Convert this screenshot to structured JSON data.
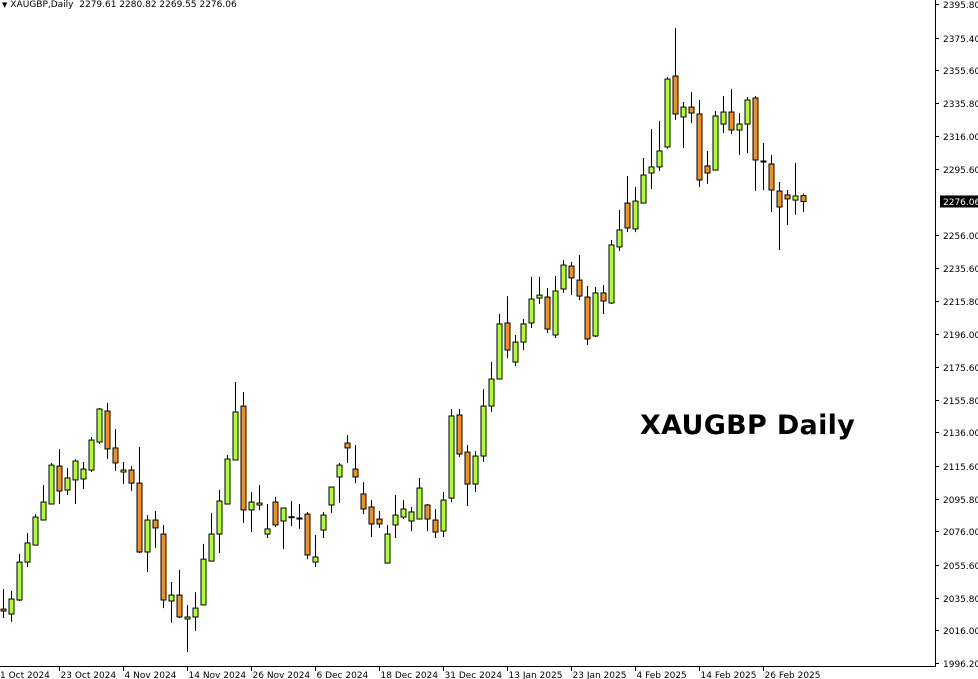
{
  "header": {
    "symbol": "XAUGBP,Daily",
    "ohlc": "2279.61 2280.82 2269.55 2276.06"
  },
  "overlay_title": "XAUGBP Daily",
  "colors": {
    "bull": "#adff2f",
    "bear": "#f0901e",
    "outline": "#000000",
    "price_label_bg": "#000000"
  },
  "chart_data": {
    "type": "candlestick",
    "timeframe": "Daily",
    "symbol": "XAUGBP",
    "ylim": [
      1996.2,
      2395.8
    ],
    "y_ticks": [
      "2395.80",
      "2375.40",
      "2355.60",
      "2335.80",
      "2316.00",
      "2295.60",
      "2256.00",
      "2235.60",
      "2215.80",
      "2196.00",
      "2175.60",
      "2155.80",
      "2136.00",
      "2115.60",
      "2095.80",
      "2076.00",
      "2055.60",
      "2035.80",
      "2016.00",
      "1996.20"
    ],
    "current_price": "2276.06",
    "x_ticks": [
      {
        "label": "1 Oct 2024",
        "bar": -1
      },
      {
        "label": "23 Oct 2024",
        "bar": 7
      },
      {
        "label": "4 Nov 2024",
        "bar": 15
      },
      {
        "label": "14 Nov 2024",
        "bar": 23
      },
      {
        "label": "26 Nov 2024",
        "bar": 31
      },
      {
        "label": "6 Dec 2024",
        "bar": 39
      },
      {
        "label": "18 Dec 2024",
        "bar": 47
      },
      {
        "label": "31 Dec 2024",
        "bar": 55
      },
      {
        "label": "13 Jan 2025",
        "bar": 63
      },
      {
        "label": "23 Jan 2025",
        "bar": 71
      },
      {
        "label": "4 Feb 2025",
        "bar": 79
      },
      {
        "label": "14 Feb 2025",
        "bar": 87
      },
      {
        "label": "26 Feb 2025",
        "bar": 95
      }
    ],
    "ohlc": [
      [
        2028.9,
        2041.1,
        2023.5,
        2027.7
      ],
      [
        2025.9,
        2039.9,
        2021.1,
        2035.0
      ],
      [
        2034.4,
        2062.3,
        2033.8,
        2057.4
      ],
      [
        2057.4,
        2075.0,
        2054.4,
        2069.0
      ],
      [
        2067.7,
        2086.5,
        2067.7,
        2084.7
      ],
      [
        2082.9,
        2104.1,
        2082.9,
        2093.8
      ],
      [
        2092.6,
        2117.5,
        2092.6,
        2116.2
      ],
      [
        2115.6,
        2126.0,
        2092.6,
        2100.5
      ],
      [
        2101.1,
        2114.4,
        2098.1,
        2108.4
      ],
      [
        2107.2,
        2119.9,
        2092.6,
        2118.7
      ],
      [
        2107.8,
        2118.1,
        2101.7,
        2113.8
      ],
      [
        2113.2,
        2133.2,
        2112.0,
        2131.4
      ],
      [
        2130.2,
        2150.8,
        2129.0,
        2150.2
      ],
      [
        2149.0,
        2153.9,
        2119.9,
        2126.0
      ],
      [
        2126.6,
        2138.1,
        2112.6,
        2117.5
      ],
      [
        2112.0,
        2118.1,
        2104.7,
        2113.2
      ],
      [
        2113.2,
        2115.6,
        2100.5,
        2105.3
      ],
      [
        2105.3,
        2127.2,
        2062.9,
        2063.5
      ],
      [
        2063.5,
        2085.9,
        2051.4,
        2082.9
      ],
      [
        2082.9,
        2088.4,
        2065.9,
        2078.1
      ],
      [
        2074.4,
        2079.9,
        2029.5,
        2034.4
      ],
      [
        2033.8,
        2045.3,
        2020.5,
        2037.4
      ],
      [
        2037.4,
        2052.6,
        2023.5,
        2024.1
      ],
      [
        2022.9,
        2031.4,
        2002.9,
        2024.1
      ],
      [
        2024.1,
        2039.2,
        2015.6,
        2029.5
      ],
      [
        2031.4,
        2068.4,
        2031.4,
        2059.2
      ],
      [
        2058.0,
        2087.2,
        2058.0,
        2074.4
      ],
      [
        2074.4,
        2101.1,
        2062.9,
        2094.4
      ],
      [
        2092.6,
        2122.3,
        2092.6,
        2119.9
      ],
      [
        2119.3,
        2166.6,
        2119.3,
        2148.4
      ],
      [
        2152.0,
        2160.5,
        2081.1,
        2089.0
      ],
      [
        2089.0,
        2099.9,
        2075.6,
        2093.8
      ],
      [
        2092.0,
        2104.1,
        2089.0,
        2093.2
      ],
      [
        2074.4,
        2092.6,
        2072.0,
        2077.5
      ],
      [
        2093.8,
        2096.9,
        2078.7,
        2079.9
      ],
      [
        2082.3,
        2090.2,
        2065.3,
        2090.2
      ],
      [
        2084.7,
        2094.4,
        2079.3,
        2084.9
      ],
      [
        2084.1,
        2092.6,
        2077.5,
        2083.5
      ],
      [
        2086.5,
        2087.8,
        2059.2,
        2061.7
      ],
      [
        2057.4,
        2073.8,
        2054.4,
        2060.5
      ],
      [
        2076.8,
        2087.8,
        2072.0,
        2085.9
      ],
      [
        2092.0,
        2102.9,
        2087.2,
        2102.9
      ],
      [
        2109.0,
        2117.5,
        2093.2,
        2116.2
      ],
      [
        2129.6,
        2134.4,
        2117.5,
        2126.6
      ],
      [
        2113.8,
        2128.4,
        2105.3,
        2109.0
      ],
      [
        2098.7,
        2105.9,
        2086.5,
        2089.6
      ],
      [
        2090.8,
        2095.0,
        2072.6,
        2080.5
      ],
      [
        2083.5,
        2088.4,
        2078.1,
        2080.5
      ],
      [
        2056.8,
        2079.9,
        2056.8,
        2074.4
      ],
      [
        2079.9,
        2098.1,
        2072.0,
        2085.9
      ],
      [
        2084.7,
        2095.0,
        2083.5,
        2089.6
      ],
      [
        2082.3,
        2090.8,
        2076.2,
        2087.8
      ],
      [
        2083.5,
        2108.4,
        2083.5,
        2102.3
      ],
      [
        2092.0,
        2092.6,
        2076.2,
        2083.5
      ],
      [
        2082.9,
        2089.6,
        2072.0,
        2075.6
      ],
      [
        2076.2,
        2099.9,
        2072.6,
        2095.0
      ],
      [
        2096.2,
        2150.2,
        2093.8,
        2146.0
      ],
      [
        2146.6,
        2150.2,
        2121.1,
        2122.9
      ],
      [
        2124.1,
        2128.4,
        2091.4,
        2104.7
      ],
      [
        2104.7,
        2124.7,
        2099.9,
        2121.7
      ],
      [
        2121.7,
        2162.3,
        2118.1,
        2152.0
      ],
      [
        2152.0,
        2178.7,
        2148.4,
        2168.4
      ],
      [
        2168.4,
        2207.8,
        2168.4,
        2201.8
      ],
      [
        2202.4,
        2218.7,
        2181.1,
        2186.0
      ],
      [
        2178.7,
        2195.1,
        2176.3,
        2190.8
      ],
      [
        2190.8,
        2204.8,
        2186.0,
        2201.8
      ],
      [
        2202.4,
        2230.3,
        2199.3,
        2216.9
      ],
      [
        2217.5,
        2230.3,
        2213.9,
        2219.3
      ],
      [
        2218.1,
        2223.6,
        2196.3,
        2198.7
      ],
      [
        2195.1,
        2230.9,
        2193.3,
        2221.8
      ],
      [
        2223.0,
        2240.6,
        2220.6,
        2237.5
      ],
      [
        2236.9,
        2239.4,
        2219.3,
        2229.7
      ],
      [
        2228.4,
        2243.6,
        2216.3,
        2218.7
      ],
      [
        2218.1,
        2224.8,
        2189.0,
        2192.7
      ],
      [
        2194.5,
        2224.2,
        2193.9,
        2220.6
      ],
      [
        2220.6,
        2225.4,
        2207.8,
        2215.7
      ],
      [
        2214.5,
        2252.7,
        2213.9,
        2249.7
      ],
      [
        2248.5,
        2270.9,
        2246.0,
        2258.8
      ],
      [
        2275.1,
        2291.5,
        2257.5,
        2260.0
      ],
      [
        2259.4,
        2284.8,
        2257.5,
        2276.3
      ],
      [
        2275.1,
        2302.4,
        2275.1,
        2292.1
      ],
      [
        2293.3,
        2320.0,
        2283.6,
        2297.0
      ],
      [
        2297.0,
        2324.9,
        2294.5,
        2306.7
      ],
      [
        2309.1,
        2351.5,
        2307.9,
        2350.3
      ],
      [
        2352.1,
        2381.2,
        2325.5,
        2329.1
      ],
      [
        2327.3,
        2336.4,
        2308.5,
        2333.3
      ],
      [
        2333.3,
        2342.4,
        2323.6,
        2329.7
      ],
      [
        2329.1,
        2337.6,
        2284.8,
        2289.1
      ],
      [
        2297.6,
        2306.7,
        2286.7,
        2293.3
      ],
      [
        2295.1,
        2330.9,
        2295.1,
        2327.9
      ],
      [
        2323.0,
        2340.0,
        2317.6,
        2330.3
      ],
      [
        2330.3,
        2344.3,
        2317.0,
        2319.4
      ],
      [
        2319.4,
        2329.7,
        2304.2,
        2323.0
      ],
      [
        2323.0,
        2339.4,
        2305.4,
        2337.6
      ],
      [
        2338.8,
        2340.0,
        2282.4,
        2301.2
      ],
      [
        2300.6,
        2311.5,
        2283.0,
        2300.0
      ],
      [
        2298.8,
        2304.2,
        2269.7,
        2283.0
      ],
      [
        2282.4,
        2287.9,
        2246.6,
        2272.7
      ],
      [
        2280.0,
        2283.0,
        2261.8,
        2277.6
      ],
      [
        2276.9,
        2299.4,
        2267.9,
        2279.4
      ],
      [
        2279.61,
        2280.82,
        2269.55,
        2276.06
      ]
    ]
  }
}
